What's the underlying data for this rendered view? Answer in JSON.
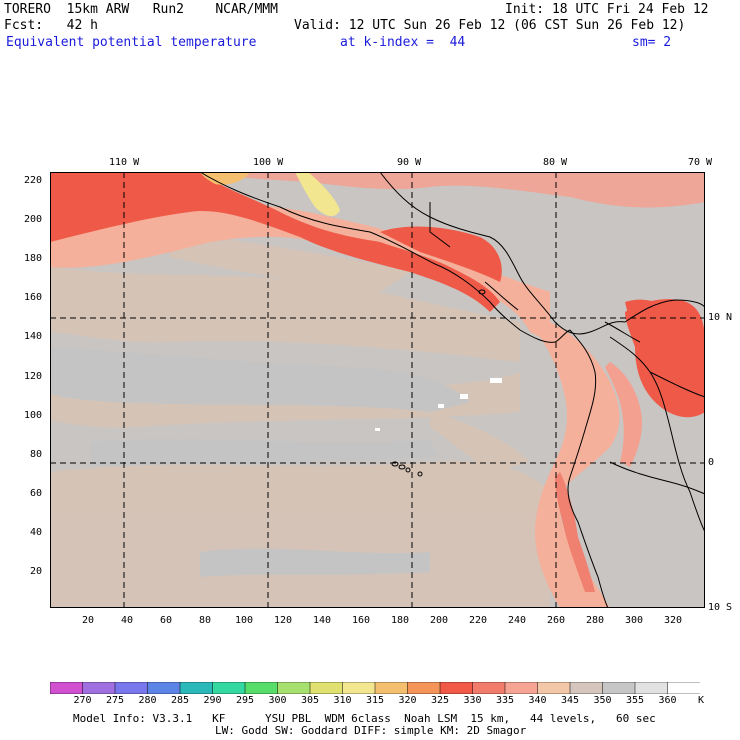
{
  "header": {
    "model": "TORERO  15km ARW   Run2    NCAR/MMM",
    "init": "Init: 18 UTC Fri 24 Feb 12",
    "fcst": "Fcst:   42 h",
    "valid": "Valid: 12 UTC Sun 26 Feb 12 (06 CST Sun 26 Feb 12)",
    "field": "Equivalent potential temperature",
    "level": "at k-index =  44",
    "smooth": "sm= 2"
  },
  "top_lon_labels": [
    "110 W",
    "100 W",
    "90 W",
    "80 W",
    "70 W"
  ],
  "right_lat_labels": [
    "10 N",
    "0",
    "10 S"
  ],
  "y_ticks": [
    "220",
    "200",
    "180",
    "160",
    "140",
    "120",
    "100",
    "80",
    "60",
    "40",
    "20"
  ],
  "x_ticks": [
    "20",
    "40",
    "60",
    "80",
    "100",
    "120",
    "140",
    "160",
    "180",
    "200",
    "220",
    "240",
    "260",
    "280",
    "300",
    "320"
  ],
  "colorbar": {
    "labels": [
      "270",
      "275",
      "280",
      "285",
      "290",
      "295",
      "300",
      "305",
      "310",
      "315",
      "320",
      "325",
      "330",
      "335",
      "340",
      "345",
      "350",
      "355",
      "360"
    ],
    "unit": "K",
    "colors": [
      "#d050d0",
      "#a070e0",
      "#7878ec",
      "#5c84e6",
      "#2ab8b8",
      "#34d8a0",
      "#58dc6a",
      "#a8e070",
      "#e0e070",
      "#f2e690",
      "#f4c070",
      "#f49458",
      "#f05a46",
      "#f27c6c",
      "#f6a594",
      "#f2c8a8",
      "#d4c6bc",
      "#c6c6c6",
      "#e2e2e2",
      "#ffffff"
    ]
  },
  "footer": {
    "line1": "Model Info: V3.3.1   KF      YSU PBL  WDM 6class  Noah LSM  15 km,   44 levels,   60 sec",
    "line2": "LW: Godd SW: Goddard DIFF: simple KM: 2D Smagor"
  }
}
